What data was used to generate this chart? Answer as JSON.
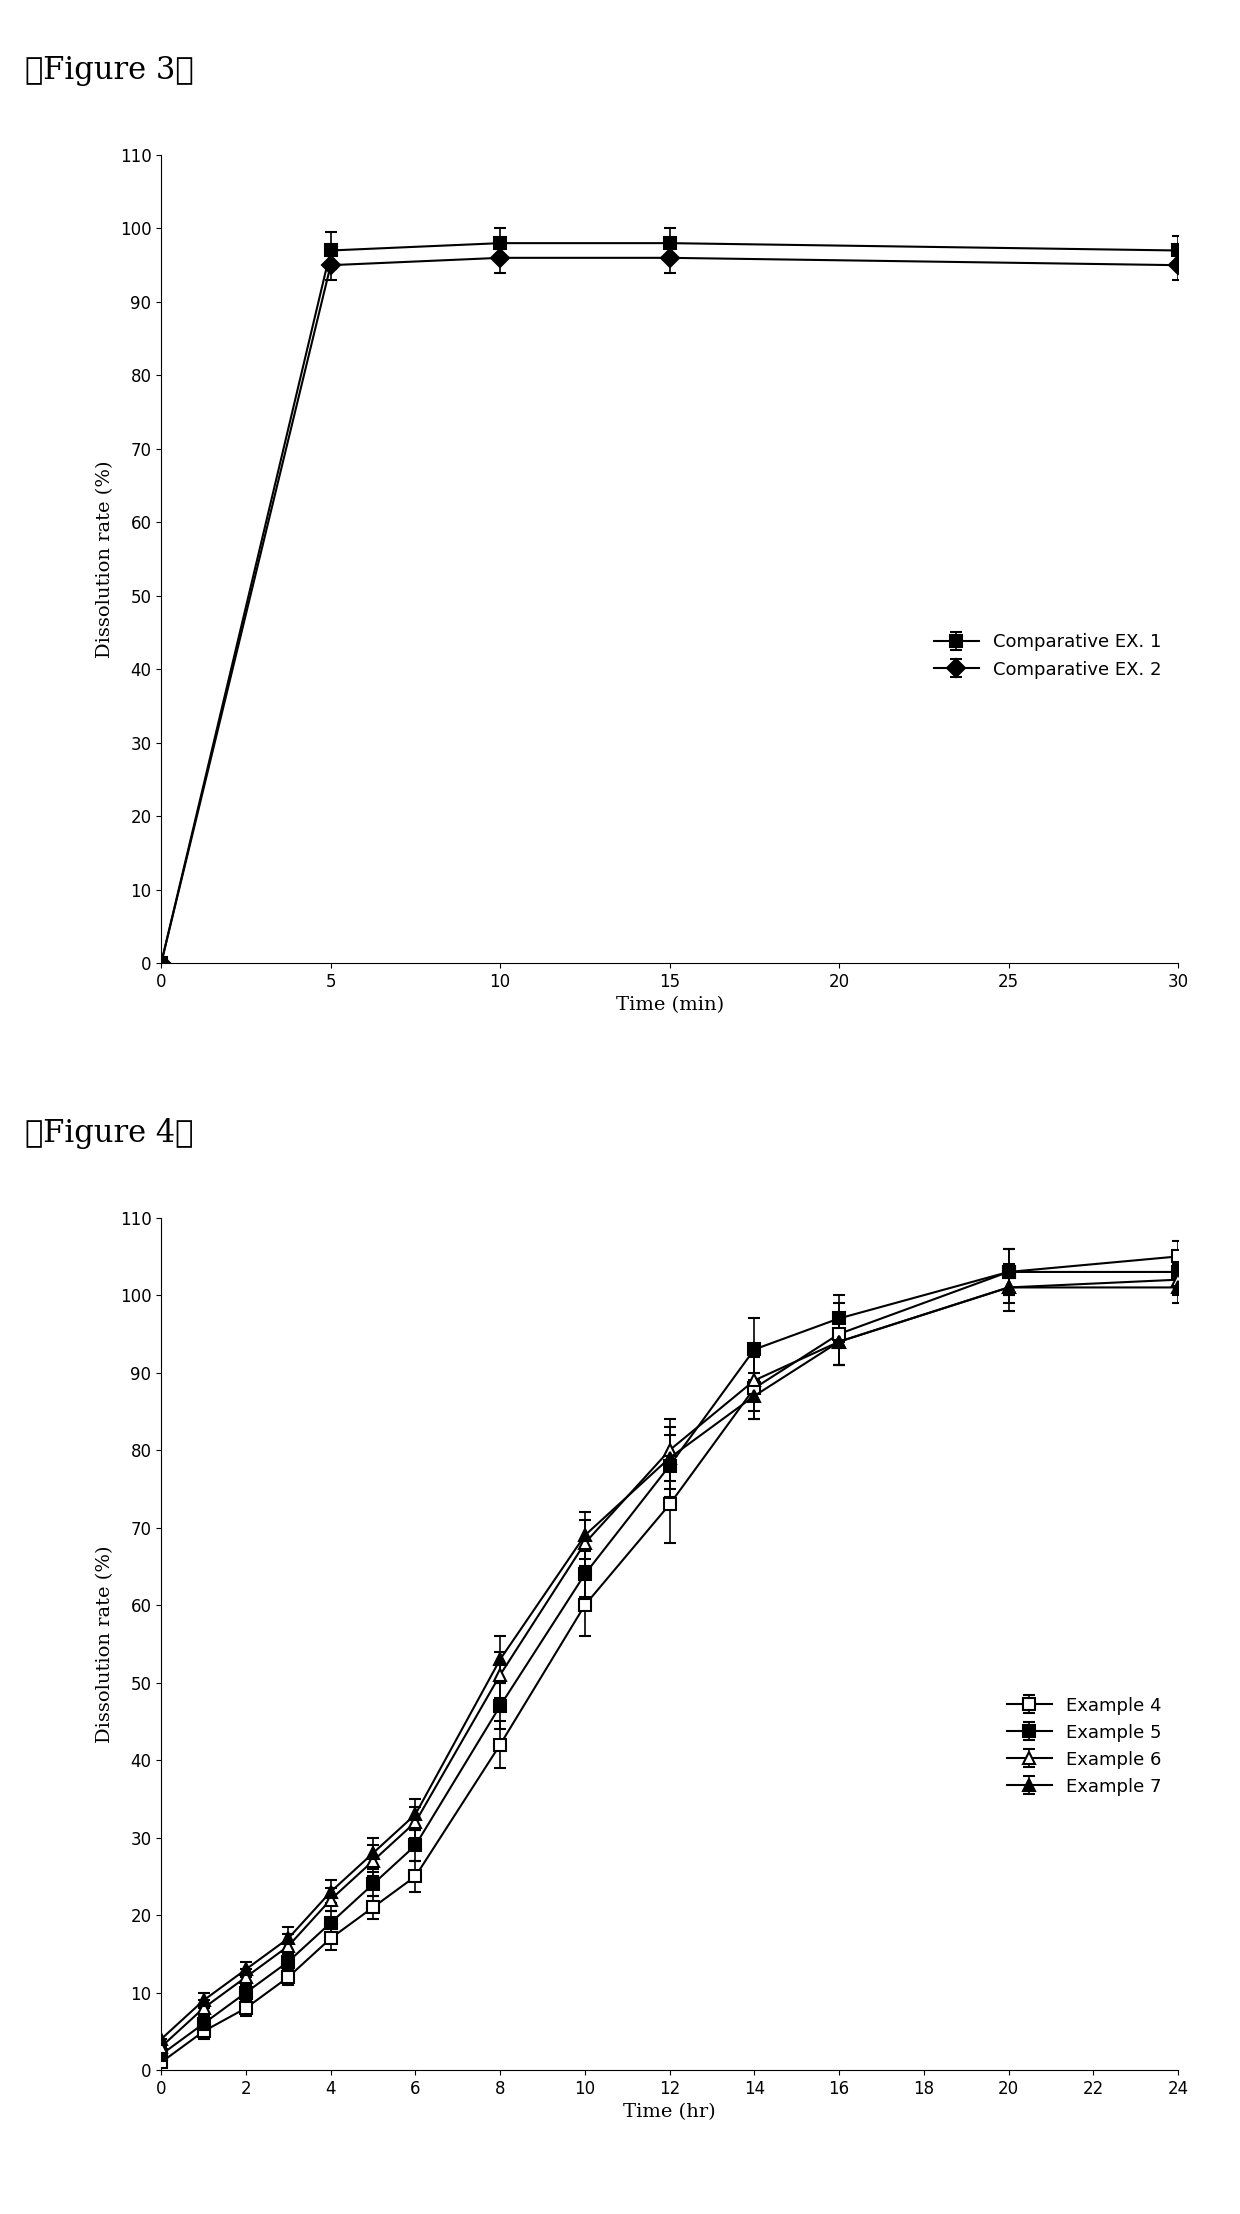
{
  "fig3": {
    "title": "【Figure 3】",
    "xlabel": "Time (min)",
    "ylabel": "Dissolution rate (%)",
    "xlim": [
      0,
      30
    ],
    "ylim": [
      0,
      110
    ],
    "xticks": [
      0,
      5,
      10,
      15,
      20,
      25,
      30
    ],
    "yticks": [
      0,
      10,
      20,
      30,
      40,
      50,
      60,
      70,
      80,
      90,
      100,
      110
    ],
    "series": [
      {
        "label": "Comparative EX. 1",
        "x": [
          0,
          5,
          10,
          15,
          30
        ],
        "y": [
          0,
          97,
          98,
          98,
          97
        ],
        "yerr": [
          0,
          2.5,
          2.0,
          2.0,
          2.0
        ],
        "marker": "s",
        "fillstyle": "full",
        "color": "#000000",
        "linewidth": 1.5
      },
      {
        "label": "Comparative EX. 2",
        "x": [
          0,
          5,
          10,
          15,
          30
        ],
        "y": [
          0,
          95,
          96,
          96,
          95
        ],
        "yerr": [
          0,
          2.0,
          2.0,
          2.0,
          2.0
        ],
        "marker": "D",
        "fillstyle": "full",
        "color": "#000000",
        "linewidth": 1.5
      }
    ]
  },
  "fig4": {
    "title": "【Figure 4】",
    "xlabel": "Time (hr)",
    "ylabel": "Dissolution rate (%)",
    "xlim": [
      0,
      24
    ],
    "ylim": [
      0,
      110
    ],
    "xticks": [
      0,
      2,
      4,
      6,
      8,
      10,
      12,
      14,
      16,
      18,
      20,
      22,
      24
    ],
    "yticks": [
      0,
      10,
      20,
      30,
      40,
      50,
      60,
      70,
      80,
      90,
      100,
      110
    ],
    "series": [
      {
        "label": "Example 4",
        "x": [
          0,
          1,
          2,
          3,
          4,
          5,
          6,
          8,
          10,
          12,
          14,
          16,
          20,
          24
        ],
        "y": [
          1,
          5,
          8,
          12,
          17,
          21,
          25,
          42,
          60,
          73,
          88,
          95,
          103,
          105
        ],
        "yerr": [
          0,
          1,
          1,
          1,
          1.5,
          1.5,
          2,
          3,
          4,
          5,
          4,
          4,
          3,
          2
        ],
        "marker": "s",
        "fillstyle": "none",
        "color": "#000000",
        "linewidth": 1.5
      },
      {
        "label": "Example 5",
        "x": [
          0,
          1,
          2,
          3,
          4,
          5,
          6,
          8,
          10,
          12,
          14,
          16,
          20,
          24
        ],
        "y": [
          2,
          6,
          10,
          14,
          19,
          24,
          29,
          47,
          64,
          78,
          93,
          97,
          103,
          103
        ],
        "yerr": [
          0,
          1,
          1,
          1,
          1.5,
          1.5,
          2,
          3,
          3,
          4,
          4,
          3,
          3,
          2
        ],
        "marker": "s",
        "fillstyle": "full",
        "color": "#000000",
        "linewidth": 1.5
      },
      {
        "label": "Example 6",
        "x": [
          0,
          1,
          2,
          3,
          4,
          5,
          6,
          8,
          10,
          12,
          14,
          16,
          20,
          24
        ],
        "y": [
          3,
          8,
          12,
          16,
          22,
          27,
          32,
          51,
          68,
          80,
          89,
          94,
          101,
          102
        ],
        "yerr": [
          0,
          1,
          1,
          1.5,
          1.5,
          2,
          2,
          3,
          3,
          4,
          4,
          3,
          3,
          2
        ],
        "marker": "^",
        "fillstyle": "none",
        "color": "#000000",
        "linewidth": 1.5
      },
      {
        "label": "Example 7",
        "x": [
          0,
          1,
          2,
          3,
          4,
          5,
          6,
          8,
          10,
          12,
          14,
          16,
          20,
          24
        ],
        "y": [
          4,
          9,
          13,
          17,
          23,
          28,
          33,
          53,
          69,
          79,
          87,
          94,
          101,
          101
        ],
        "yerr": [
          0,
          1,
          1,
          1.5,
          1.5,
          2,
          2,
          3,
          3,
          4,
          3,
          3,
          2,
          2
        ],
        "marker": "^",
        "fillstyle": "full",
        "color": "#000000",
        "linewidth": 1.5
      }
    ]
  },
  "background_color": "#ffffff",
  "title_fontsize": 22,
  "axis_label_fontsize": 14,
  "tick_fontsize": 12,
  "legend_fontsize": 13
}
